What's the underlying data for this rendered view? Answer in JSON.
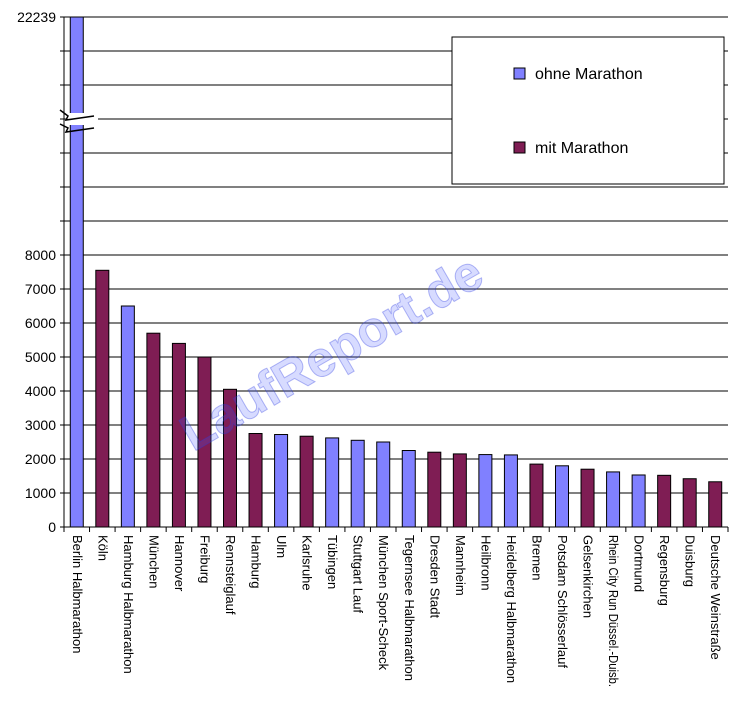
{
  "chart_data": {
    "type": "bar",
    "title": "",
    "xlabel": "",
    "ylabel": "",
    "y_ticks": [
      "0",
      "1000",
      "2000",
      "3000",
      "4000",
      "5000",
      "6000",
      "7000",
      "8000"
    ],
    "y_top_label": "22239",
    "ylim": [
      0,
      8000
    ],
    "axis_break": true,
    "grid": true,
    "legend_position": "top-right",
    "categories": [
      "Berlin Halbmarathon",
      "Köln",
      "Hamburg Halbmarathon",
      "München",
      "Hannover",
      "Freiburg",
      "Rennsteiglauf",
      "Hamburg",
      "Ulm",
      "Karlsruhe",
      "Tübingen",
      "Stuttgart Lauf",
      "München Sport-Scheck",
      "Tegernsee Halbmarathon",
      "Dresden Stadt",
      "Mannheim",
      "Heilbronn",
      "Heidelberg Halbmarathon",
      "Bremen",
      "Potsdam Schlösserlauf",
      "Gelsenkirchen",
      "Rhein City Run Düssel.-Duisb.",
      "Dortmund",
      "Regensburg",
      "Duisburg",
      "Deutsche Weinstraße"
    ],
    "values": [
      22239,
      7550,
      6500,
      5700,
      5400,
      5000,
      4050,
      2750,
      2720,
      2670,
      2620,
      2550,
      2500,
      2250,
      2200,
      2150,
      2130,
      2120,
      1850,
      1800,
      1700,
      1620,
      1530,
      1520,
      1420,
      1330
    ],
    "series_index": [
      0,
      1,
      0,
      1,
      1,
      1,
      1,
      1,
      0,
      1,
      0,
      0,
      0,
      0,
      1,
      1,
      0,
      0,
      1,
      0,
      1,
      0,
      0,
      1,
      1,
      1
    ],
    "series": [
      {
        "name": "ohne Marathon",
        "color": "#8080ff"
      },
      {
        "name": "mit Marathon",
        "color": "#7f1d54"
      }
    ],
    "watermark": "LaufReport.de"
  }
}
